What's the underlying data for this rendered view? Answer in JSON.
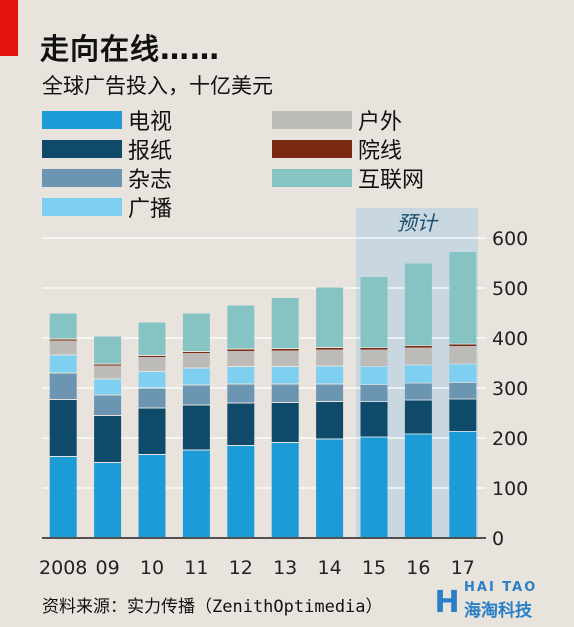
{
  "header": {
    "title": "走向在线……",
    "subtitle": "全球广告投入，十亿美元"
  },
  "source": "资料来源：实力传播（ZenithOptimedia）",
  "watermark": {
    "top": "HAI TAO",
    "bottom": "海淘科技"
  },
  "colors": {
    "tv": "#1c9bd7",
    "newspapers": "#0f4a6b",
    "magazines": "#6b95b0",
    "radio": "#7fcff0",
    "outdoor": "#bdbbb8",
    "cinema": "#7a2a12",
    "internet": "#86c4c4",
    "forecast_band": "#c9d8e0"
  },
  "chart_data": {
    "type": "bar",
    "stacked": true,
    "categories": [
      "2008",
      "09",
      "10",
      "11",
      "12",
      "13",
      "14",
      "15",
      "16",
      "17"
    ],
    "forecast_label": "预计",
    "forecast_from": "15",
    "ylim": [
      0,
      600
    ],
    "yticks": [
      0,
      100,
      200,
      300,
      400,
      500,
      600
    ],
    "series": [
      {
        "key": "tv",
        "name": "电视",
        "values": [
          162,
          150,
          166,
          175,
          184,
          190,
          197,
          201,
          207,
          212
        ]
      },
      {
        "key": "newspapers",
        "name": "报纸",
        "values": [
          114,
          94,
          93,
          90,
          85,
          80,
          75,
          71,
          68,
          65
        ]
      },
      {
        "key": "magazines",
        "name": "杂志",
        "values": [
          53,
          41,
          40,
          40,
          38,
          37,
          35,
          34,
          34,
          33
        ]
      },
      {
        "key": "radio",
        "name": "广播",
        "values": [
          36,
          32,
          33,
          34,
          35,
          35,
          36,
          36,
          36,
          37
        ]
      },
      {
        "key": "outdoor",
        "name": "户外",
        "values": [
          30,
          28,
          30,
          31,
          32,
          33,
          34,
          35,
          36,
          37
        ]
      },
      {
        "key": "cinema",
        "name": "院线",
        "values": [
          2,
          2,
          2,
          2,
          3,
          3,
          3,
          3,
          3,
          3
        ]
      },
      {
        "key": "internet",
        "name": "互联网",
        "values": [
          52,
          56,
          67,
          77,
          88,
          102,
          121,
          142,
          165,
          185
        ]
      }
    ]
  }
}
